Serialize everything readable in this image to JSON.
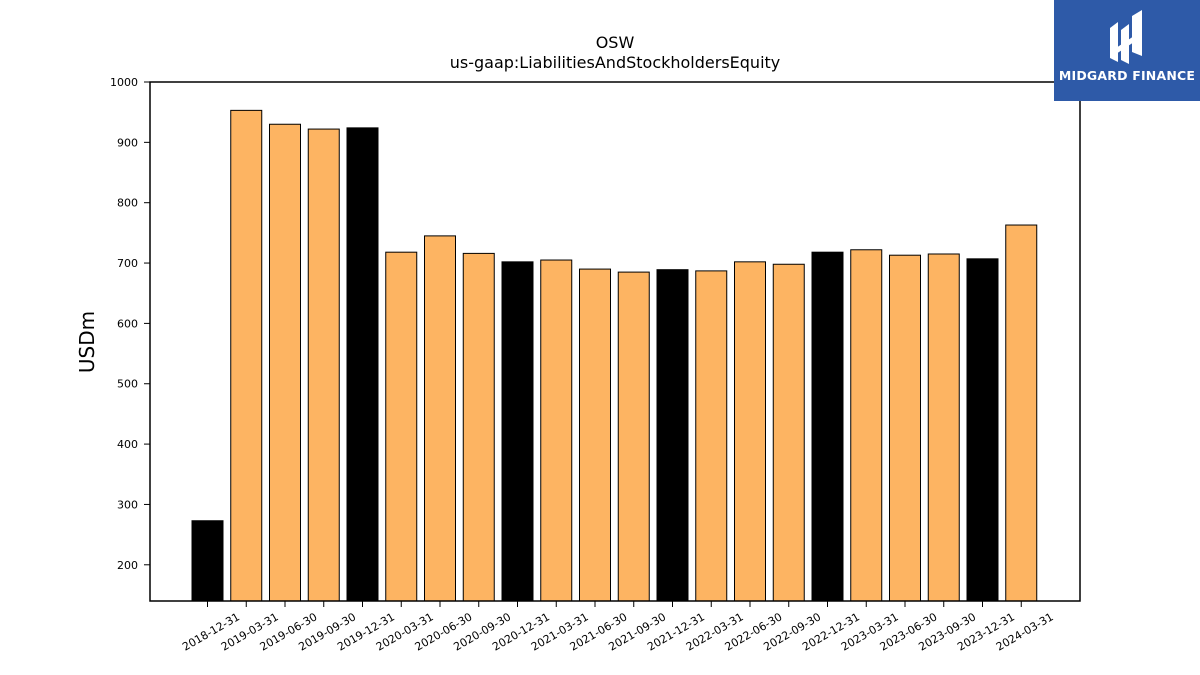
{
  "logo": {
    "text": "MIDGARD FINANCE",
    "color": "#2e5aa8"
  },
  "chart_data": {
    "type": "bar",
    "title": "OSW",
    "subtitle": "us-gaap:LiabilitiesAndStockholdersEquity",
    "xlabel": "",
    "ylabel": "USDm",
    "ylim": [
      140,
      1000
    ],
    "yticks": [
      200,
      300,
      400,
      500,
      600,
      700,
      800,
      900,
      1000
    ],
    "grid": false,
    "categories": [
      "2018-12-31",
      "2019-03-31",
      "2019-06-30",
      "2019-09-30",
      "2019-12-31",
      "2020-03-31",
      "2020-06-30",
      "2020-09-30",
      "2020-12-31",
      "2021-03-31",
      "2021-06-30",
      "2021-09-30",
      "2021-12-31",
      "2022-03-31",
      "2022-06-30",
      "2022-09-30",
      "2022-12-31",
      "2023-03-31",
      "2023-06-30",
      "2023-09-30",
      "2023-12-31",
      "2024-03-31"
    ],
    "values": [
      273,
      953,
      930,
      922,
      924,
      718,
      745,
      716,
      702,
      705,
      690,
      685,
      689,
      687,
      702,
      698,
      718,
      722,
      713,
      715,
      707,
      763
    ],
    "colors": [
      "#000000",
      "#fdb462",
      "#fdb462",
      "#fdb462",
      "#000000",
      "#fdb462",
      "#fdb462",
      "#fdb462",
      "#000000",
      "#fdb462",
      "#fdb462",
      "#fdb462",
      "#000000",
      "#fdb462",
      "#fdb462",
      "#fdb462",
      "#000000",
      "#fdb462",
      "#fdb462",
      "#fdb462",
      "#000000",
      "#fdb462"
    ]
  }
}
